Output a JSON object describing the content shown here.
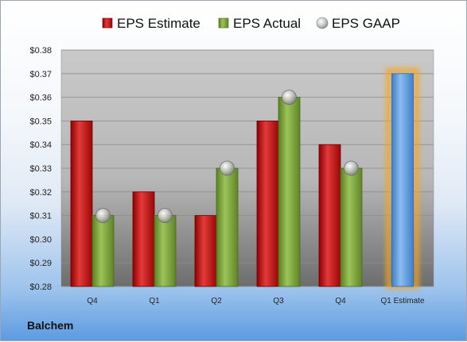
{
  "chart_data": {
    "type": "bar",
    "categories": [
      "Q4",
      "Q1",
      "Q2",
      "Q3",
      "Q4",
      "Q1 Estimate"
    ],
    "series": [
      {
        "name": "EPS Estimate",
        "values": [
          0.35,
          0.32,
          0.31,
          0.35,
          0.34,
          null
        ],
        "color": "#c00000"
      },
      {
        "name": "EPS Actual",
        "values": [
          0.31,
          0.31,
          0.33,
          0.36,
          0.33,
          null
        ],
        "color": "#7aa23a"
      },
      {
        "name": "EPS GAAP",
        "values": [
          0.31,
          0.31,
          0.33,
          0.36,
          0.33,
          null
        ],
        "color": "#a8a8a8"
      }
    ],
    "estimate": {
      "category": "Q1 Estimate",
      "value": 0.37,
      "color": "#5b9bd5",
      "glow": "#f5a623"
    },
    "yticks": [
      "$0.38",
      "$0.37",
      "$0.36",
      "$0.35",
      "$0.34",
      "$0.33",
      "$0.32",
      "$0.31",
      "$0.30",
      "$0.29",
      "$0.28"
    ],
    "ylim": [
      0.28,
      0.38
    ],
    "legend_position": "top",
    "grid": true
  },
  "company": "Balchem"
}
